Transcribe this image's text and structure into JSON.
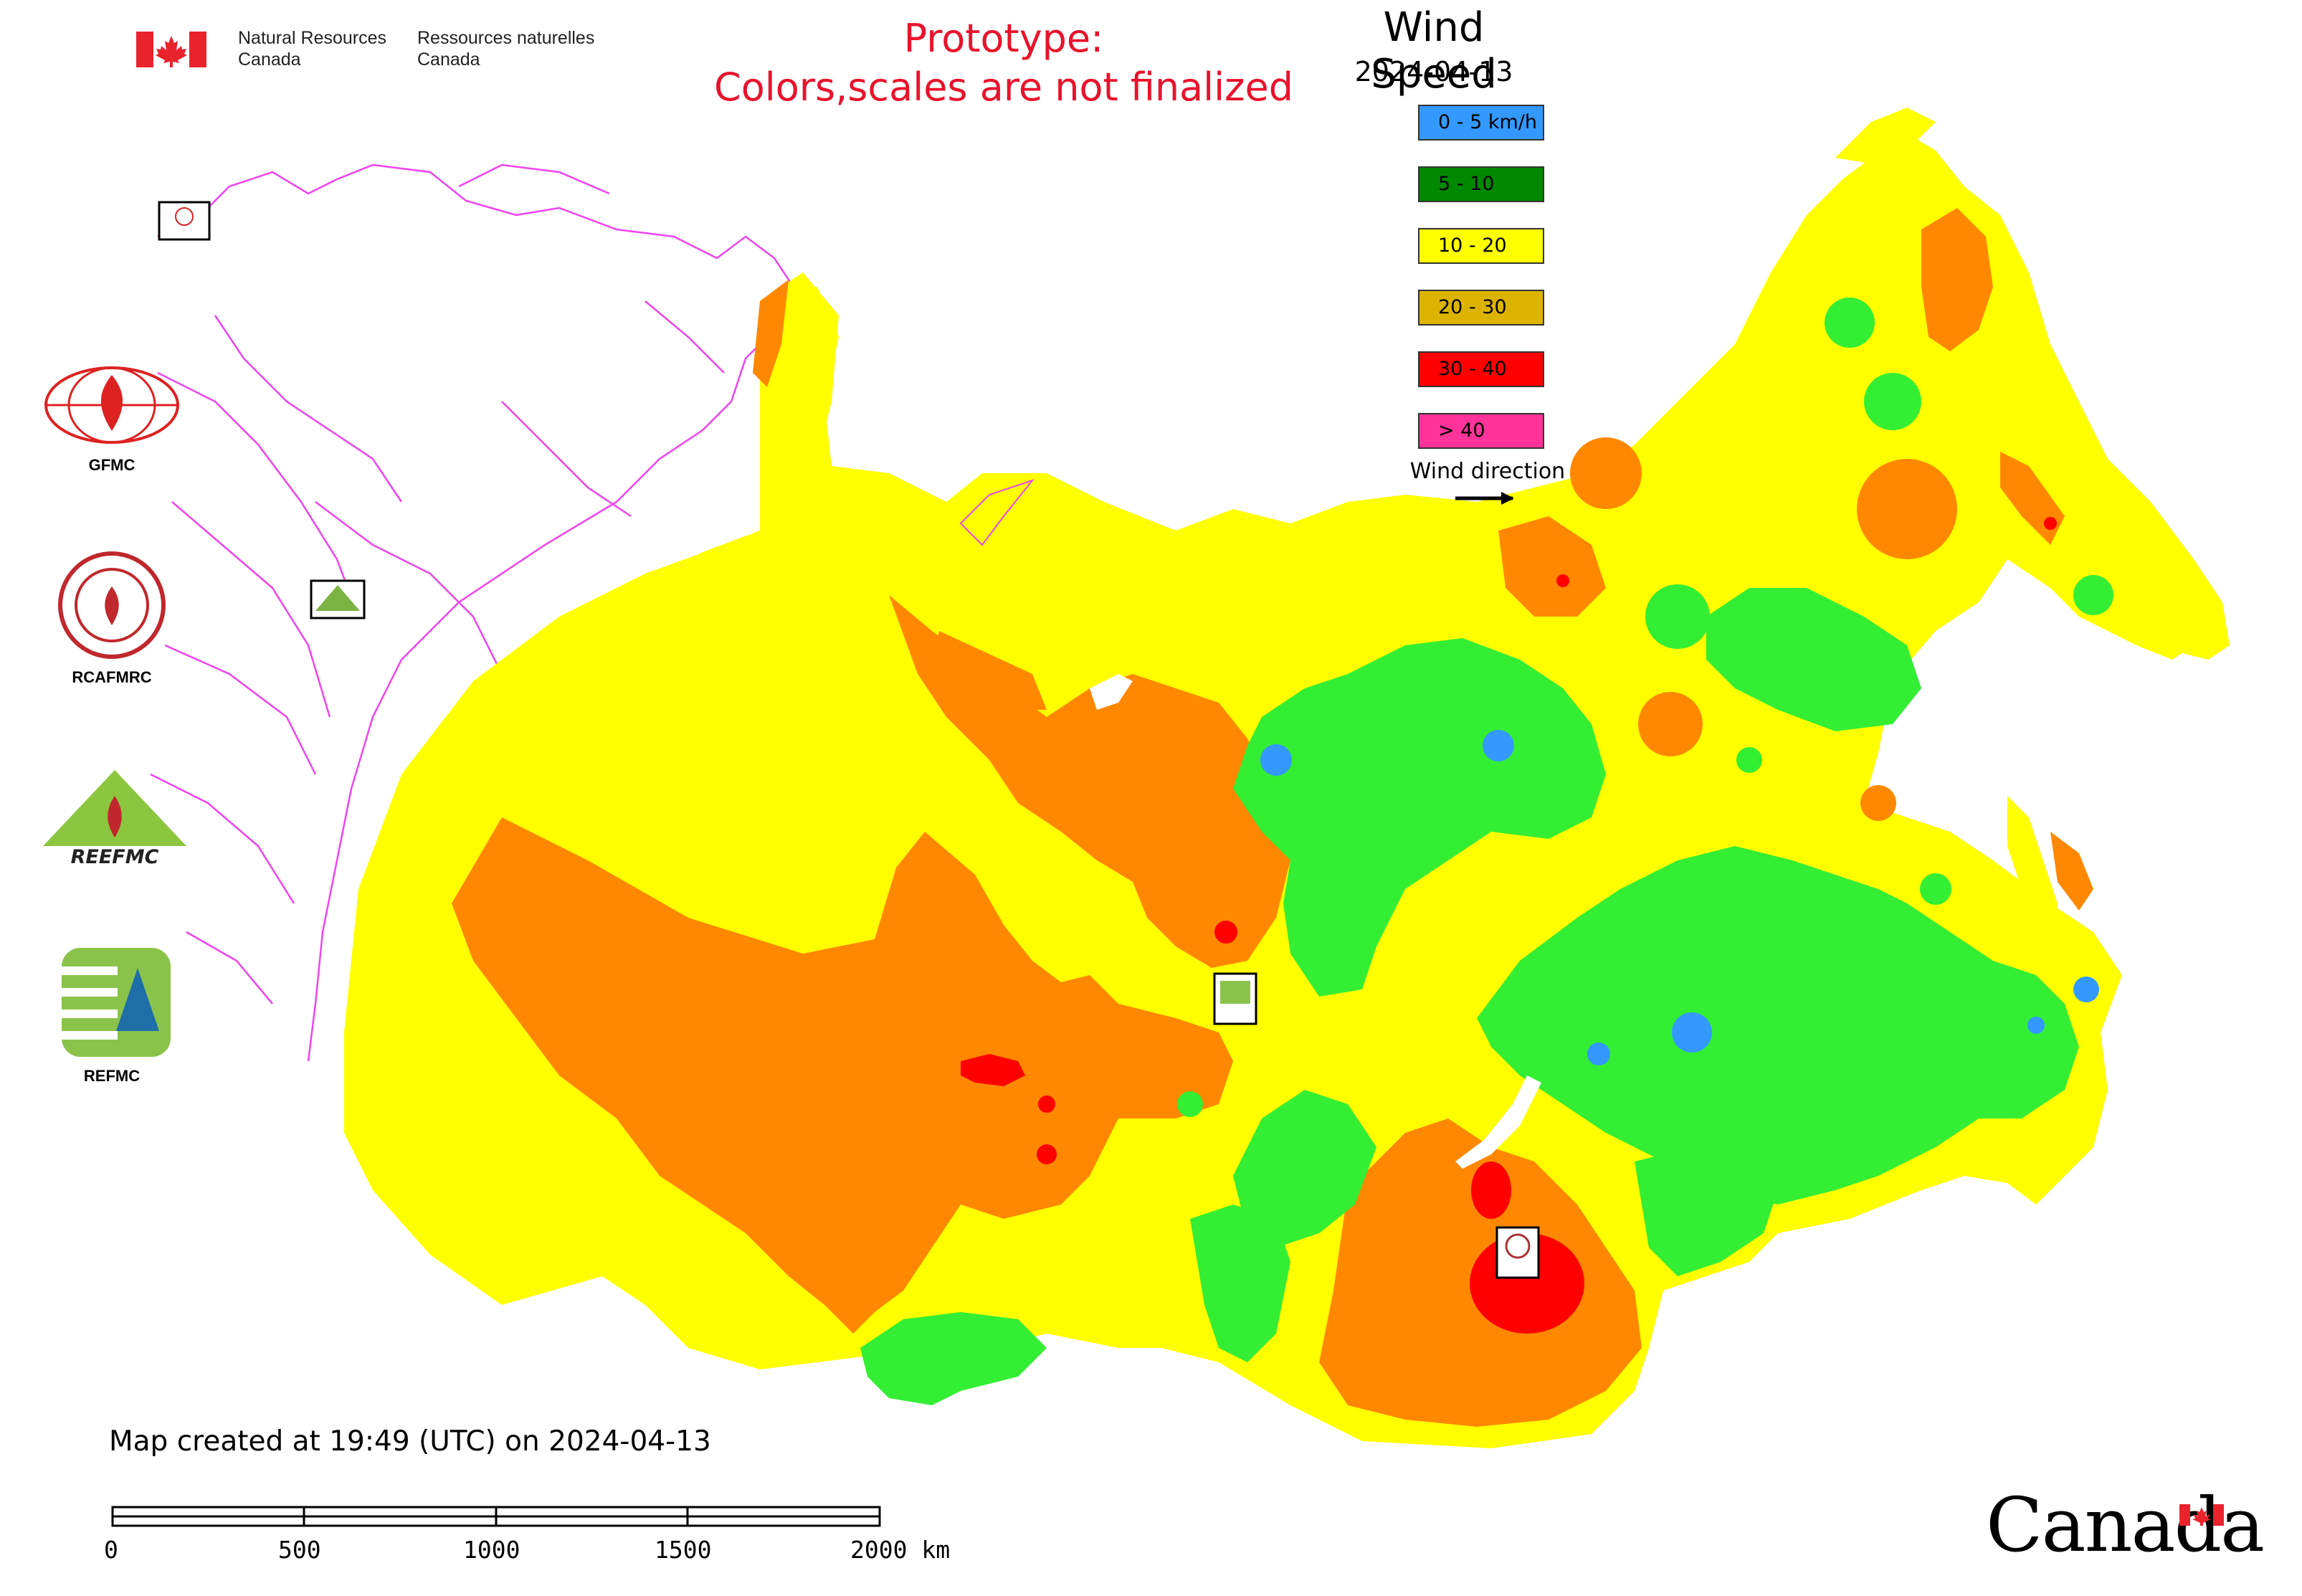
{
  "header": {
    "agency_en_line1": "Natural Resources",
    "agency_en_line2": "Canada",
    "agency_fr_line1": "Ressources naturelles",
    "agency_fr_line2": "Canada",
    "prototype_line1": "Prototype:",
    "prototype_line2": "Colors,scales are not finalized"
  },
  "legend": {
    "title": "Wind Speed",
    "date": "2024-04-13",
    "items": [
      {
        "label": "0 - 5 km/h",
        "color": "#3399ff"
      },
      {
        "label": "5 - 10",
        "color": "#008800"
      },
      {
        "label": "10 - 20",
        "color": "#ffff00"
      },
      {
        "label": "20 - 30",
        "color": "#dcb400"
      },
      {
        "label": "30 - 40",
        "color": "#ff0000"
      },
      {
        "label": "> 40",
        "color": "#ff3399"
      }
    ],
    "wind_direction_label": "Wind direction"
  },
  "map_colors": {
    "calm": "#3399ff",
    "light": "#33ee33",
    "moderate": "#ffff00",
    "fresh": "#ff8800",
    "strong": "#ff0000",
    "borders": "#ee44ee",
    "water": "#ffffff"
  },
  "logos": {
    "gfmc": "GFMC",
    "rcafmrc": "RCAFMRC",
    "reefmc": "REEFMC",
    "refmc": "REFMC"
  },
  "footer": {
    "created_note": "Map created at 19:49 (UTC) on 2024-04-13",
    "scale_labels": [
      "0",
      "500",
      "1000",
      "1500",
      "2000 km"
    ],
    "wordmark": "Canada"
  }
}
